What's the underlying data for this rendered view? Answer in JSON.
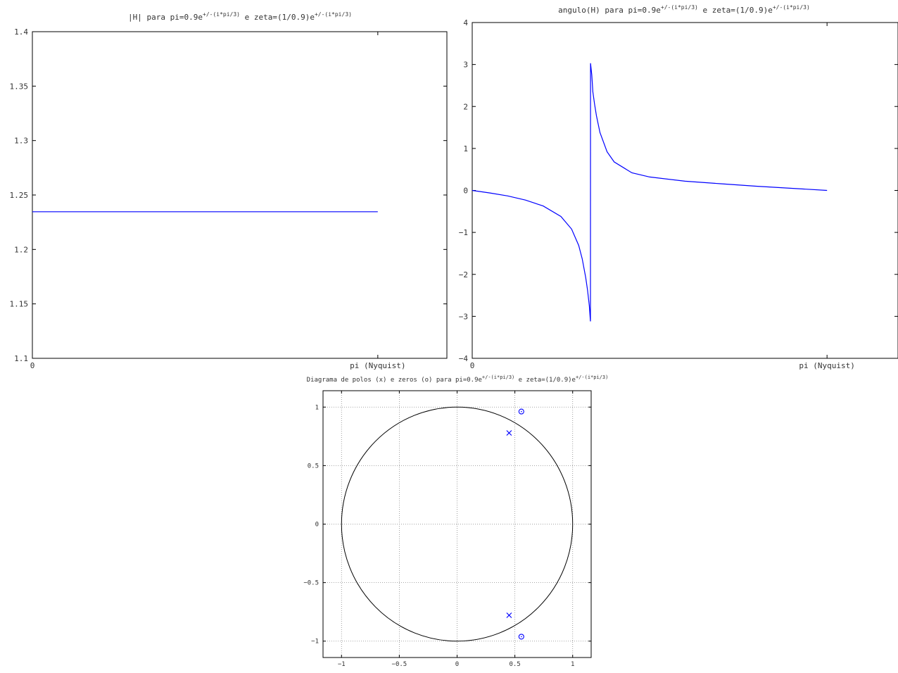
{
  "colors": {
    "series": "#0000ff",
    "axis": "#000000",
    "text": "#333333",
    "grid": "#888888"
  },
  "chart_data": [
    {
      "type": "line",
      "title": {
        "base": "|H| para pi=0.9e",
        "sup1": "+/-(i*pi/3)",
        "mid": " e zeta=(1/0.9)e",
        "sup2": "+/-(i*pi/3)"
      },
      "xlabel": "",
      "ylabel": "",
      "xlim": [
        0,
        1.2
      ],
      "ylim": [
        1.1,
        1.4
      ],
      "x_ticks": [
        0,
        1
      ],
      "x_tick_labels": [
        "0",
        "pi (Nyquist)"
      ],
      "y_ticks": [
        1.1,
        1.15,
        1.2,
        1.25,
        1.3,
        1.35,
        1.4
      ],
      "y_tick_labels": [
        "1.1",
        "1.15",
        "1.2",
        "1.25",
        "1.3",
        "1.35",
        "1.4"
      ],
      "grid": false,
      "series": [
        {
          "x": [
            0,
            1
          ],
          "y": [
            1.2346,
            1.2346
          ]
        }
      ]
    },
    {
      "type": "line",
      "title": {
        "base": "angulo(H) para pi=0.9e",
        "sup1": "+/-(i*pi/3)",
        "mid": " e zeta=(1/0.9)e",
        "sup2": "+/-(i*pi/3)"
      },
      "xlabel": "",
      "ylabel": "",
      "xlim": [
        0,
        1.2
      ],
      "ylim": [
        -4,
        4
      ],
      "x_ticks": [
        0,
        1
      ],
      "x_tick_labels": [
        "0",
        "pi (Nyquist)"
      ],
      "y_ticks": [
        -4,
        -3,
        -2,
        -1,
        0,
        1,
        2,
        3,
        4
      ],
      "y_tick_labels": [
        "−4",
        "−3",
        "−2",
        "−1",
        "0",
        "1",
        "2",
        "3",
        "4"
      ],
      "grid": false,
      "series": [
        {
          "x": [
            0,
            0.05,
            0.1,
            0.15,
            0.2,
            0.25,
            0.28,
            0.3,
            0.31,
            0.32,
            0.325,
            0.33,
            0.333,
            0.3333,
            0.3334,
            0.337,
            0.34,
            0.345,
            0.35,
            0.36,
            0.38,
            0.4,
            0.45,
            0.5,
            0.6,
            0.7,
            0.8,
            0.9,
            1.0
          ],
          "y": [
            0,
            -0.06,
            -0.13,
            -0.23,
            -0.37,
            -0.62,
            -0.92,
            -1.31,
            -1.63,
            -2.08,
            -2.38,
            -2.75,
            -3.11,
            -3.11,
            3.03,
            2.75,
            2.35,
            2.05,
            1.78,
            1.38,
            0.92,
            0.68,
            0.42,
            0.32,
            0.22,
            0.16,
            0.1,
            0.05,
            0
          ]
        }
      ]
    },
    {
      "type": "scatter",
      "title": {
        "base": "Diagrama de polos (x) e zeros (o) para pi=0.9e",
        "sup1": "+/-(i*pi/3)",
        "mid": " e zeta=(1/0.9)e",
        "sup2": "+/-(i*pi/3)"
      },
      "xlabel": "",
      "ylabel": "",
      "xlim": [
        -1.16,
        1.16
      ],
      "ylim": [
        -1.14,
        1.14
      ],
      "x_ticks": [
        -1,
        -0.5,
        0,
        0.5,
        1
      ],
      "x_tick_labels": [
        "−1",
        "−0.5",
        "0",
        "0.5",
        "1"
      ],
      "y_ticks": [
        -1,
        -0.5,
        0,
        0.5,
        1
      ],
      "y_tick_labels": [
        "−1",
        "−0.5",
        "0",
        "0.5",
        "1"
      ],
      "grid": true,
      "unit_circle": {
        "cx": 0,
        "cy": 0,
        "r": 1
      },
      "series": [
        {
          "marker": "x",
          "x": [
            0.45,
            0.45
          ],
          "y": [
            0.779,
            -0.779
          ]
        },
        {
          "marker": "o",
          "x": [
            0.556,
            0.556
          ],
          "y": [
            0.962,
            -0.962
          ]
        }
      ]
    }
  ]
}
